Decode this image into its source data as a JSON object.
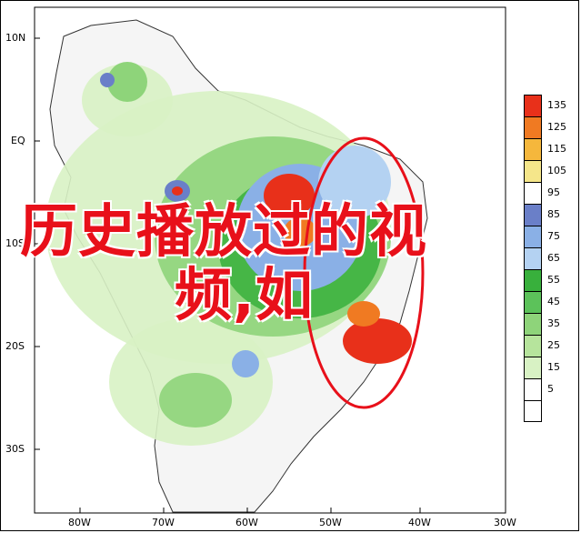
{
  "map": {
    "lat_labels": [
      "10N",
      "EQ",
      "10S",
      "20S",
      "30S"
    ],
    "lon_labels": [
      "80W",
      "70W",
      "60W",
      "50W",
      "40W",
      "30W"
    ]
  },
  "legend": {
    "levels": [
      "135",
      "125",
      "115",
      "105",
      "95",
      "85",
      "75",
      "65",
      "55",
      "45",
      "35",
      "25",
      "15",
      "5"
    ],
    "colors": [
      "#e8301a",
      "#f07a22",
      "#f5b73c",
      "#f5e68a",
      "#ffffff",
      "#6a7fc8",
      "#8ab0e6",
      "#b4d2f2",
      "#38b03c",
      "#5cc25a",
      "#8ed47a",
      "#b6e49c",
      "#d8f2c4",
      "#ffffff"
    ]
  },
  "overlay": {
    "line1": "历史播放过的视",
    "line2": "频,如"
  },
  "colors": {
    "annotation_ellipse": "#e8101a"
  }
}
